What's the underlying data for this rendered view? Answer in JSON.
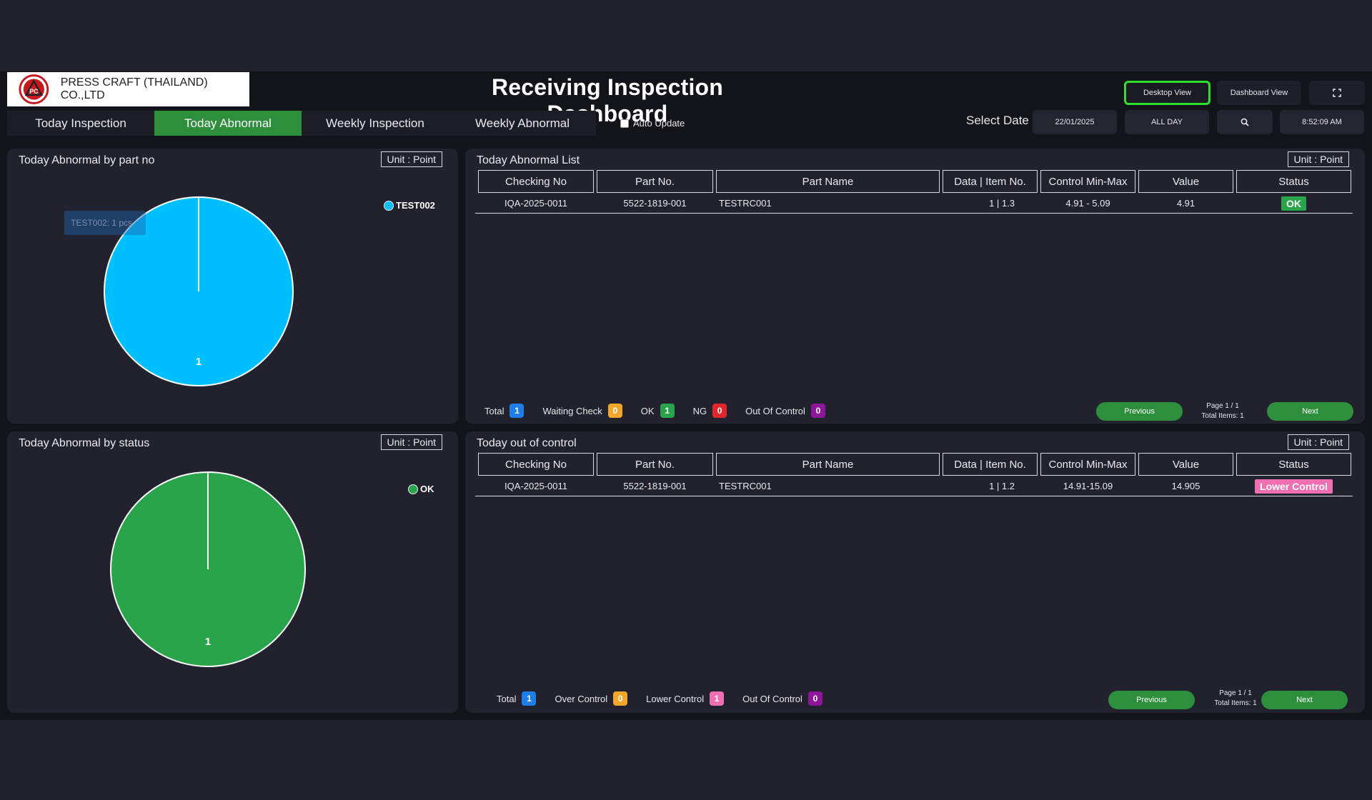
{
  "header": {
    "company": "PRESS CRAFT (THAILAND) CO.,LTD",
    "title": "Receiving Inspection Dashboard",
    "desktop_view": "Desktop View",
    "dashboard_view": "Dashboard View",
    "fullscreen_icon": "fullscreen-icon"
  },
  "tabs": [
    "Today Inspection",
    "Today Abnormal",
    "Weekly Inspection",
    "Weekly Abnormal"
  ],
  "active_tab": 1,
  "auto_update": "Auto Update",
  "select_date_label": "Select Date",
  "date_value": "22/01/2025",
  "range_value": "ALL DAY",
  "time_value": "8:52:09 AM",
  "unit_label": "Unit : Point",
  "panel_part": {
    "title": "Today Abnormal by part no",
    "legend": "TEST002",
    "legend_color": "#00bfff",
    "tooltip": "TEST002:  1 pcs"
  },
  "panel_status": {
    "title": "Today Abnormal by status",
    "legend": "OK",
    "legend_color": "#2aa44a"
  },
  "chart_data": [
    {
      "type": "pie",
      "title": "Today Abnormal by part no",
      "categories": [
        "TEST002"
      ],
      "values": [
        1
      ],
      "colors": [
        "#00bfff"
      ],
      "data_labels": [
        "1"
      ],
      "legend": "top-right"
    },
    {
      "type": "pie",
      "title": "Today Abnormal by status",
      "categories": [
        "OK"
      ],
      "values": [
        1
      ],
      "colors": [
        "#2aa44a"
      ],
      "data_labels": [
        "1"
      ],
      "legend": "top-right"
    }
  ],
  "abnormal_list": {
    "title": "Today Abnormal List",
    "columns": [
      "Checking No",
      "Part No.",
      "Part Name",
      "Data | Item No.",
      "Control Min-Max",
      "Value",
      "Status"
    ],
    "rows": [
      {
        "checking_no": "IQA-2025-0011",
        "part_no": "5522-1819-001",
        "part_name": "TESTRC001",
        "data_item": "1 | 1.3",
        "control": "4.91 - 5.09",
        "value": "4.91",
        "status": "OK"
      }
    ],
    "stats": {
      "total_label": "Total",
      "total": "1",
      "waiting_label": "Waiting Check",
      "waiting": "0",
      "ok_label": "OK",
      "ok": "1",
      "ng_label": "NG",
      "ng": "0",
      "ooc_label": "Out Of Control",
      "ooc": "0"
    },
    "pager": {
      "previous": "Previous",
      "next": "Next",
      "page": "Page 1 / 1",
      "total_items": "Total Items: 1"
    }
  },
  "out_of_control": {
    "title": "Today out of control",
    "columns": [
      "Checking No",
      "Part No.",
      "Part Name",
      "Data | Item No.",
      "Control Min-Max",
      "Value",
      "Status"
    ],
    "rows": [
      {
        "checking_no": "IQA-2025-0011",
        "part_no": "5522-1819-001",
        "part_name": "TESTRC001",
        "data_item": "1 | 1.2",
        "control": "14.91-15.09",
        "value": "14.905",
        "status": "Lower Control"
      }
    ],
    "stats": {
      "total_label": "Total",
      "total": "1",
      "over_label": "Over Control",
      "over": "0",
      "lower_label": "Lower Control",
      "lower": "1",
      "ooc_label": "Out Of Control",
      "ooc": "0"
    },
    "pager": {
      "previous": "Previous",
      "next": "Next",
      "page": "Page 1 / 1",
      "total_items": "Total Items: 1"
    }
  }
}
